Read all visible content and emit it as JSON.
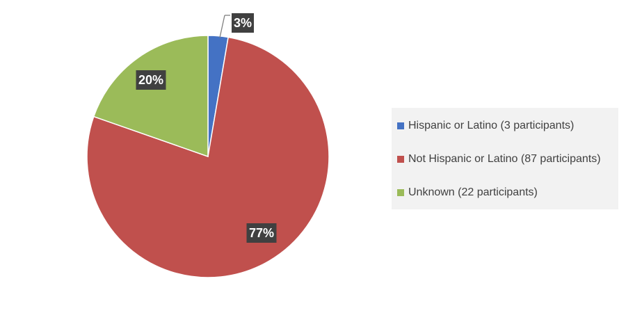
{
  "chart_data": {
    "type": "pie",
    "categories": [
      "Hispanic or Latino (3 participants)",
      "Not Hispanic or Latino (87 participants)",
      "Unknown (22 participants)"
    ],
    "values": [
      3,
      87,
      22
    ],
    "percent_labels": [
      "3%",
      "77%",
      "20%"
    ],
    "colors": [
      "#4472c4",
      "#c0504d",
      "#9bbb59"
    ],
    "legend_position": "right"
  }
}
